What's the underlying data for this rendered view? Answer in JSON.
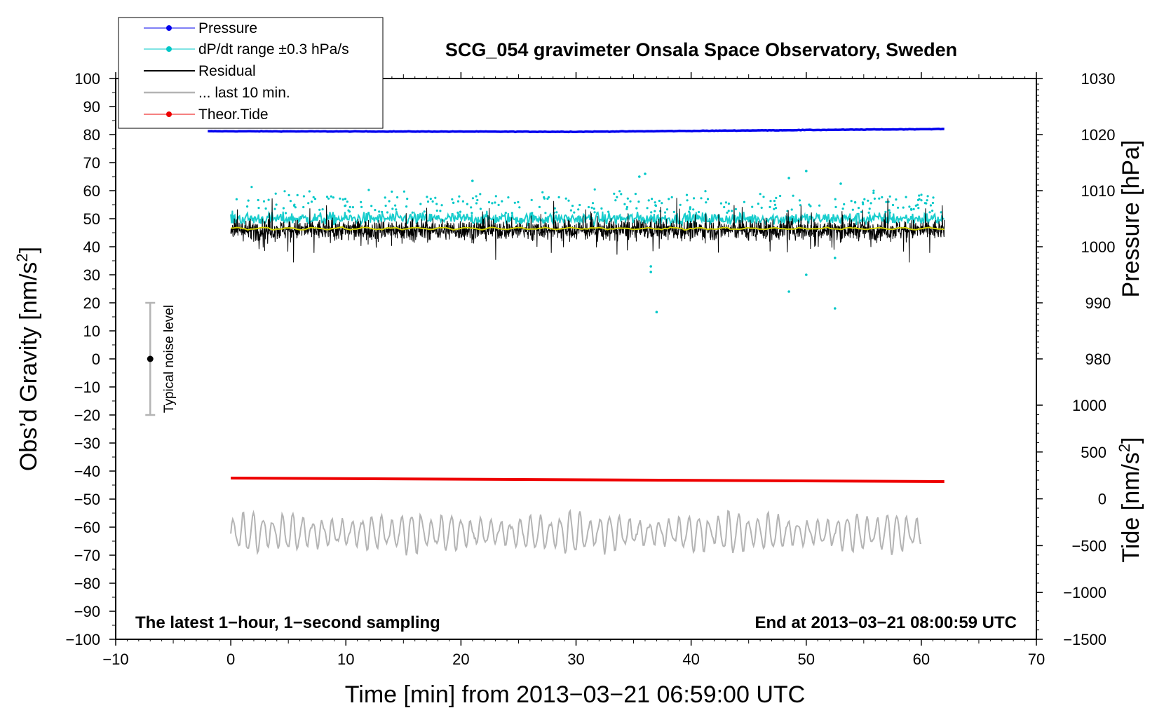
{
  "chart_data": {
    "type": "line",
    "title": "SCG_054 gravimeter Onsala Space Observatory, Sweden",
    "xlabel": "Time [min] from 2013−03−21 06:59:00 UTC",
    "ylabel_left_text": "Obs’d Gravity [nm/s",
    "ylabel_left_sup": "2",
    "ylabel_left_close": "]",
    "ylabel_pressure": "Pressure [hPa]",
    "ylabel_tide_text": "Tide [nm/s",
    "ylabel_tide_sup": "2",
    "ylabel_tide_close": "]",
    "xlim": [
      -10,
      70
    ],
    "ylim": [
      -100,
      100
    ],
    "x_ticks": [
      -10,
      0,
      10,
      20,
      30,
      40,
      50,
      60,
      70
    ],
    "x_tick_labels": [
      "−10",
      "0",
      "10",
      "20",
      "30",
      "40",
      "50",
      "60",
      "70"
    ],
    "y_ticks": [
      100,
      90,
      80,
      70,
      60,
      50,
      40,
      30,
      20,
      10,
      0,
      -10,
      -20,
      -30,
      -40,
      -50,
      -60,
      -70,
      -80,
      -90,
      -100
    ],
    "y_tick_labels": [
      "100",
      "90",
      "80",
      "70",
      "60",
      "50",
      "40",
      "30",
      "20",
      "10",
      "0",
      "−10",
      "−20",
      "−30",
      "−40",
      "−50",
      "−60",
      "−70",
      "−80",
      "−90",
      "−100"
    ],
    "pressure_axis": {
      "ticks": [
        1030,
        1020,
        1010,
        1000,
        990,
        980
      ],
      "tick_labels": [
        "1030",
        "1020",
        "1010",
        "1000",
        "990",
        "980"
      ],
      "range_hpa": [
        1030,
        980
      ],
      "gravity_equiv": [
        100,
        0
      ]
    },
    "tide_axis": {
      "ticks": [
        1000,
        500,
        0,
        -500,
        -1000,
        -1500
      ],
      "tick_labels": [
        "1000",
        "500",
        "0",
        "−500",
        "−1000",
        "−1500"
      ],
      "range_nm_s2": [
        1000,
        -1500
      ],
      "gravity_equiv": [
        -16.5,
        -100
      ]
    },
    "series": [
      {
        "name": "Pressure",
        "color": "#0000ee",
        "x_range_min": [
          -2,
          62
        ],
        "value_hpa_start": 1020.6,
        "value_hpa_end": 1021.0,
        "value_hpa_mid": 1020.5
      },
      {
        "name": "dP/dt range ±0.3 hPa/s",
        "color": "#00c8c8",
        "center_nm_s2": 50,
        "outliers": [
          [
            21,
            63.5
          ],
          [
            35.5,
            65
          ],
          [
            36,
            66
          ],
          [
            36.5,
            33
          ],
          [
            36.5,
            31
          ],
          [
            37,
            16.7
          ],
          [
            48.5,
            24
          ],
          [
            48.5,
            64.5
          ],
          [
            50,
            67
          ],
          [
            50,
            30
          ],
          [
            52.5,
            18
          ],
          [
            52.5,
            36
          ],
          [
            53,
            62.5
          ]
        ]
      },
      {
        "name": "Residual",
        "color": "#000000",
        "x_range_min": [
          0,
          62
        ],
        "center_nm_s2": 46,
        "spread_nm_s2": 6
      },
      {
        "name": "... last 10 min.",
        "color": "#b4b4b4",
        "x_range_min": [
          0,
          60
        ],
        "center_nm_s2": -62,
        "min_nm_s2": -73,
        "max_nm_s2": -49
      },
      {
        "name": "Theor.Tide",
        "color": "#ee0000",
        "x_range_min": [
          0,
          62
        ],
        "value_start_nm_s2": 222,
        "value_end_nm_s2": 184
      },
      {
        "name": "Residual mean",
        "color": "#d2d200",
        "x_range_min": [
          0,
          62
        ],
        "center_nm_s2": 46.5
      }
    ],
    "noise_level": {
      "label": "Typical noise level",
      "x": -7,
      "center": 0,
      "range": [
        -20,
        20
      ]
    },
    "annotations": {
      "left": "The latest 1−hour, 1−second sampling",
      "right": "End at 2013−03−21 08:00:59 UTC"
    },
    "legend": {
      "placement": "top-left",
      "entries": [
        {
          "label": "Pressure",
          "color": "#0000ee",
          "style": "line-dot"
        },
        {
          "label": "dP/dt range ±0.3 hPa/s",
          "color": "#00c8c8",
          "style": "line-dot"
        },
        {
          "label": "Residual",
          "color": "#000000",
          "style": "line"
        },
        {
          "label": "... last 10 min.",
          "color": "#b4b4b4",
          "style": "line"
        },
        {
          "label": "Theor.Tide",
          "color": "#ee0000",
          "style": "line-dot"
        }
      ]
    }
  }
}
